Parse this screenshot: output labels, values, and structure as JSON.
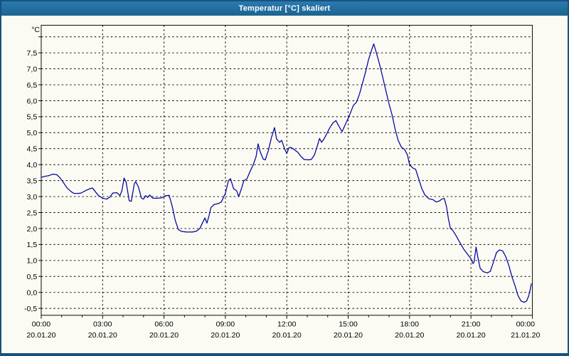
{
  "window": {
    "title": "Temperatur [°C] skaliert"
  },
  "colors": {
    "titlebar_bg": "#2069A0",
    "titlebar_text": "#FFFFFF",
    "window_border": "#17527E",
    "background": "#FBFBF3",
    "gridline": "#000000",
    "axis": "#000000",
    "series_line": "#0000A0"
  },
  "chart_data": {
    "type": "line",
    "title": "Temperatur [°C] skaliert",
    "y_unit_label": "°C",
    "grid": "on",
    "legend": "none",
    "x_axis": {
      "range_hours": [
        0,
        24
      ],
      "minor_tick_every_hours": 1,
      "major_ticks": [
        {
          "t": 0,
          "time": "00:00",
          "date": "20.01.20"
        },
        {
          "t": 3,
          "time": "03:00",
          "date": "20.01.20"
        },
        {
          "t": 6,
          "time": "06:00",
          "date": "20.01.20"
        },
        {
          "t": 9,
          "time": "09:00",
          "date": "20.01.20"
        },
        {
          "t": 12,
          "time": "12:00",
          "date": "20.01.20"
        },
        {
          "t": 15,
          "time": "15:00",
          "date": "20.01.20"
        },
        {
          "t": 18,
          "time": "18:00",
          "date": "20.01.20"
        },
        {
          "t": 21,
          "time": "21:00",
          "date": "20.01.20"
        },
        {
          "t": 24,
          "time": "00:00",
          "date": "21.01.20"
        }
      ]
    },
    "y_axis": {
      "min": -0.72,
      "max": 8.36,
      "unlabeled_gridlines": [
        8.0
      ],
      "ticks": [
        {
          "v": 7.5,
          "label": "7,5"
        },
        {
          "v": 7.0,
          "label": "7,0"
        },
        {
          "v": 6.5,
          "label": "6,5"
        },
        {
          "v": 6.0,
          "label": "6,0"
        },
        {
          "v": 5.5,
          "label": "5,5"
        },
        {
          "v": 5.0,
          "label": "5,0"
        },
        {
          "v": 4.5,
          "label": "4,5"
        },
        {
          "v": 4.0,
          "label": "4,0"
        },
        {
          "v": 3.5,
          "label": "3,5"
        },
        {
          "v": 3.0,
          "label": "3,0"
        },
        {
          "v": 2.5,
          "label": "2,5"
        },
        {
          "v": 2.0,
          "label": "2,0"
        },
        {
          "v": 1.5,
          "label": "1,5"
        },
        {
          "v": 1.0,
          "label": "1,0"
        },
        {
          "v": 0.5,
          "label": "0,5"
        },
        {
          "v": 0.0,
          "label": "0,0"
        },
        {
          "v": -0.5,
          "label": "-0,5"
        }
      ]
    },
    "series": [
      {
        "name": "Temperatur",
        "color": "#0000A0",
        "points": [
          [
            0.0,
            3.6
          ],
          [
            0.15,
            3.63
          ],
          [
            0.4,
            3.66
          ],
          [
            0.55,
            3.7
          ],
          [
            0.75,
            3.69
          ],
          [
            0.9,
            3.6
          ],
          [
            1.05,
            3.47
          ],
          [
            1.25,
            3.28
          ],
          [
            1.45,
            3.16
          ],
          [
            1.6,
            3.1
          ],
          [
            1.8,
            3.1
          ],
          [
            1.95,
            3.11
          ],
          [
            2.15,
            3.18
          ],
          [
            2.35,
            3.24
          ],
          [
            2.5,
            3.27
          ],
          [
            2.65,
            3.15
          ],
          [
            2.8,
            3.03
          ],
          [
            3.0,
            2.95
          ],
          [
            3.2,
            2.92
          ],
          [
            3.35,
            2.98
          ],
          [
            3.5,
            3.11
          ],
          [
            3.7,
            3.12
          ],
          [
            3.85,
            3.03
          ],
          [
            3.95,
            3.2
          ],
          [
            4.05,
            3.58
          ],
          [
            4.15,
            3.45
          ],
          [
            4.3,
            2.87
          ],
          [
            4.4,
            2.85
          ],
          [
            4.55,
            3.4
          ],
          [
            4.62,
            3.47
          ],
          [
            4.75,
            3.3
          ],
          [
            4.9,
            2.95
          ],
          [
            5.0,
            2.92
          ],
          [
            5.1,
            3.03
          ],
          [
            5.2,
            2.97
          ],
          [
            5.3,
            3.05
          ],
          [
            5.45,
            2.95
          ],
          [
            5.65,
            2.95
          ],
          [
            5.9,
            2.96
          ],
          [
            6.05,
            3.02
          ],
          [
            6.25,
            3.04
          ],
          [
            6.4,
            2.7
          ],
          [
            6.55,
            2.25
          ],
          [
            6.7,
            1.97
          ],
          [
            6.85,
            1.91
          ],
          [
            7.1,
            1.89
          ],
          [
            7.4,
            1.89
          ],
          [
            7.6,
            1.92
          ],
          [
            7.75,
            2.0
          ],
          [
            7.9,
            2.2
          ],
          [
            8.0,
            2.33
          ],
          [
            8.1,
            2.17
          ],
          [
            8.2,
            2.4
          ],
          [
            8.3,
            2.66
          ],
          [
            8.45,
            2.75
          ],
          [
            8.65,
            2.78
          ],
          [
            8.8,
            2.83
          ],
          [
            9.0,
            3.1
          ],
          [
            9.15,
            3.5
          ],
          [
            9.25,
            3.56
          ],
          [
            9.4,
            3.25
          ],
          [
            9.55,
            3.18
          ],
          [
            9.65,
            3.0
          ],
          [
            9.8,
            3.28
          ],
          [
            9.9,
            3.5
          ],
          [
            10.05,
            3.55
          ],
          [
            10.2,
            3.78
          ],
          [
            10.35,
            3.98
          ],
          [
            10.5,
            4.25
          ],
          [
            10.6,
            4.65
          ],
          [
            10.7,
            4.4
          ],
          [
            10.85,
            4.17
          ],
          [
            10.95,
            4.15
          ],
          [
            11.1,
            4.45
          ],
          [
            11.25,
            4.85
          ],
          [
            11.4,
            5.16
          ],
          [
            11.5,
            4.8
          ],
          [
            11.65,
            4.7
          ],
          [
            11.75,
            4.76
          ],
          [
            11.9,
            4.48
          ],
          [
            12.0,
            4.35
          ],
          [
            12.1,
            4.52
          ],
          [
            12.2,
            4.54
          ],
          [
            12.35,
            4.48
          ],
          [
            12.55,
            4.38
          ],
          [
            12.7,
            4.25
          ],
          [
            12.85,
            4.16
          ],
          [
            13.05,
            4.15
          ],
          [
            13.2,
            4.16
          ],
          [
            13.35,
            4.3
          ],
          [
            13.5,
            4.6
          ],
          [
            13.6,
            4.82
          ],
          [
            13.7,
            4.7
          ],
          [
            13.8,
            4.78
          ],
          [
            13.95,
            4.96
          ],
          [
            14.1,
            5.15
          ],
          [
            14.25,
            5.3
          ],
          [
            14.4,
            5.38
          ],
          [
            14.55,
            5.2
          ],
          [
            14.7,
            5.03
          ],
          [
            14.85,
            5.24
          ],
          [
            15.0,
            5.45
          ],
          [
            15.1,
            5.6
          ],
          [
            15.25,
            5.85
          ],
          [
            15.4,
            5.95
          ],
          [
            15.55,
            6.2
          ],
          [
            15.7,
            6.55
          ],
          [
            15.85,
            6.9
          ],
          [
            16.0,
            7.3
          ],
          [
            16.15,
            7.6
          ],
          [
            16.25,
            7.78
          ],
          [
            16.4,
            7.45
          ],
          [
            16.55,
            7.1
          ],
          [
            16.7,
            6.7
          ],
          [
            16.85,
            6.3
          ],
          [
            17.0,
            5.9
          ],
          [
            17.15,
            5.55
          ],
          [
            17.3,
            5.1
          ],
          [
            17.45,
            4.75
          ],
          [
            17.6,
            4.55
          ],
          [
            17.75,
            4.48
          ],
          [
            17.9,
            4.3
          ],
          [
            18.0,
            4.0
          ],
          [
            18.15,
            3.9
          ],
          [
            18.3,
            3.85
          ],
          [
            18.45,
            3.55
          ],
          [
            18.6,
            3.25
          ],
          [
            18.75,
            3.05
          ],
          [
            18.95,
            2.93
          ],
          [
            19.15,
            2.9
          ],
          [
            19.3,
            2.83
          ],
          [
            19.45,
            2.86
          ],
          [
            19.6,
            2.93
          ],
          [
            19.7,
            2.94
          ],
          [
            19.8,
            2.7
          ],
          [
            19.9,
            2.3
          ],
          [
            20.0,
            2.0
          ],
          [
            20.1,
            1.95
          ],
          [
            20.25,
            1.8
          ],
          [
            20.45,
            1.57
          ],
          [
            20.65,
            1.35
          ],
          [
            20.85,
            1.18
          ],
          [
            21.0,
            1.05
          ],
          [
            21.1,
            0.9
          ],
          [
            21.15,
            0.95
          ],
          [
            21.25,
            1.42
          ],
          [
            21.35,
            1.05
          ],
          [
            21.45,
            0.75
          ],
          [
            21.6,
            0.65
          ],
          [
            21.8,
            0.61
          ],
          [
            21.95,
            0.66
          ],
          [
            22.1,
            0.95
          ],
          [
            22.25,
            1.25
          ],
          [
            22.4,
            1.33
          ],
          [
            22.55,
            1.3
          ],
          [
            22.7,
            1.12
          ],
          [
            22.85,
            0.85
          ],
          [
            23.0,
            0.5
          ],
          [
            23.15,
            0.22
          ],
          [
            23.3,
            -0.1
          ],
          [
            23.45,
            -0.27
          ],
          [
            23.6,
            -0.31
          ],
          [
            23.72,
            -0.27
          ],
          [
            23.82,
            -0.12
          ],
          [
            23.9,
            0.1
          ],
          [
            23.95,
            0.27
          ]
        ]
      }
    ]
  }
}
